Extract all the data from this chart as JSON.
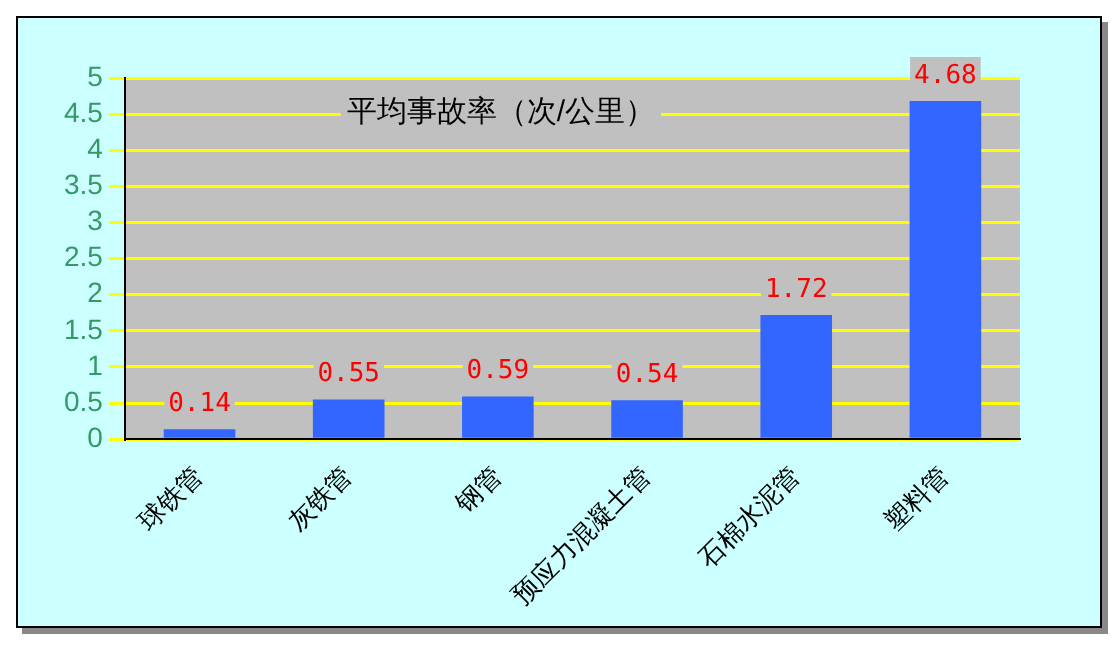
{
  "chart_data": {
    "type": "bar",
    "title": "平均事故率（次/公里）",
    "categories": [
      "球铁管",
      "灰铁管",
      "钢管",
      "预应力混凝土管",
      "石棉水泥管",
      "塑料管"
    ],
    "values": [
      0.14,
      0.55,
      0.59,
      0.54,
      1.72,
      4.68
    ],
    "color": "#3366ff",
    "ylim": [
      0,
      5
    ],
    "yticks": [
      0,
      0.5,
      1,
      1.5,
      2,
      2.5,
      3,
      3.5,
      4,
      4.5,
      5
    ],
    "grid": "y",
    "data_labels": true,
    "legend": false
  }
}
